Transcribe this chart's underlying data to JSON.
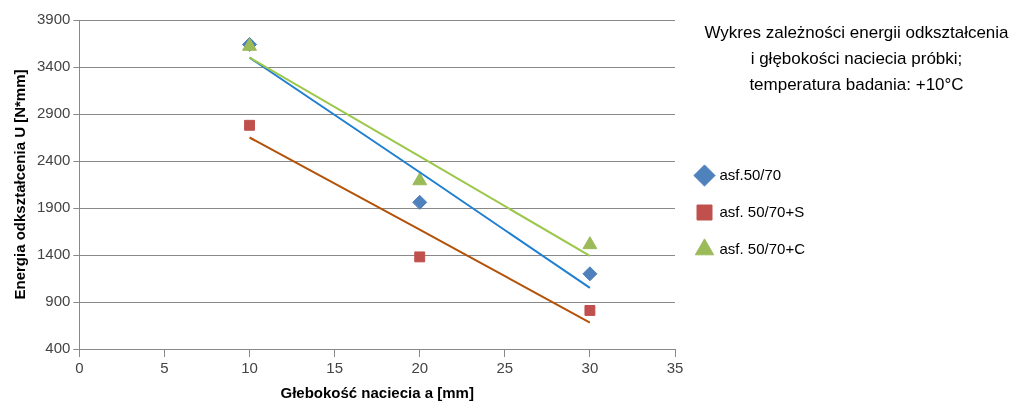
{
  "chart_data": {
    "type": "scatter",
    "title": "Wykres zależności energii odkształcenia\ni głębokości naciecia próbki;\ntemperatura badania: +10°C",
    "xlabel": "Głebokość naciecia a [mm]",
    "ylabel": "Energia odkształcenia U [N*mm]",
    "x": [
      10,
      20,
      30
    ],
    "series": [
      {
        "name": "asf.50/70",
        "color": "#4f81bd",
        "marker": "diamond",
        "values": [
          3640,
          1960,
          1200
        ]
      },
      {
        "name": "asf. 50/70+S",
        "color": "#c0504d",
        "marker": "square",
        "values": [
          2780,
          1380,
          810
        ]
      },
      {
        "name": "asf. 50/70+C",
        "color": "#9bbb59",
        "marker": "triangle",
        "values": [
          3620,
          2190,
          1510
        ]
      },
      {
        "type": "line",
        "color": "#1f7fd0",
        "marker": "none",
        "values": [
          3500,
          2280,
          1050
        ]
      },
      {
        "type": "line",
        "color": "#b4520a",
        "marker": "none",
        "values": [
          2650,
          1670,
          680
        ]
      },
      {
        "type": "line",
        "color": "#9bc74a",
        "marker": "none",
        "values": [
          3500,
          2450,
          1390
        ]
      }
    ],
    "xlim": [
      0,
      35
    ],
    "xticks": [
      0,
      5,
      10,
      15,
      20,
      25,
      30,
      35
    ],
    "ylim": [
      400,
      3900
    ],
    "yticks": [
      400,
      900,
      1400,
      1900,
      2400,
      2900,
      3400,
      3900
    ],
    "grid": "y",
    "legend": "right"
  }
}
